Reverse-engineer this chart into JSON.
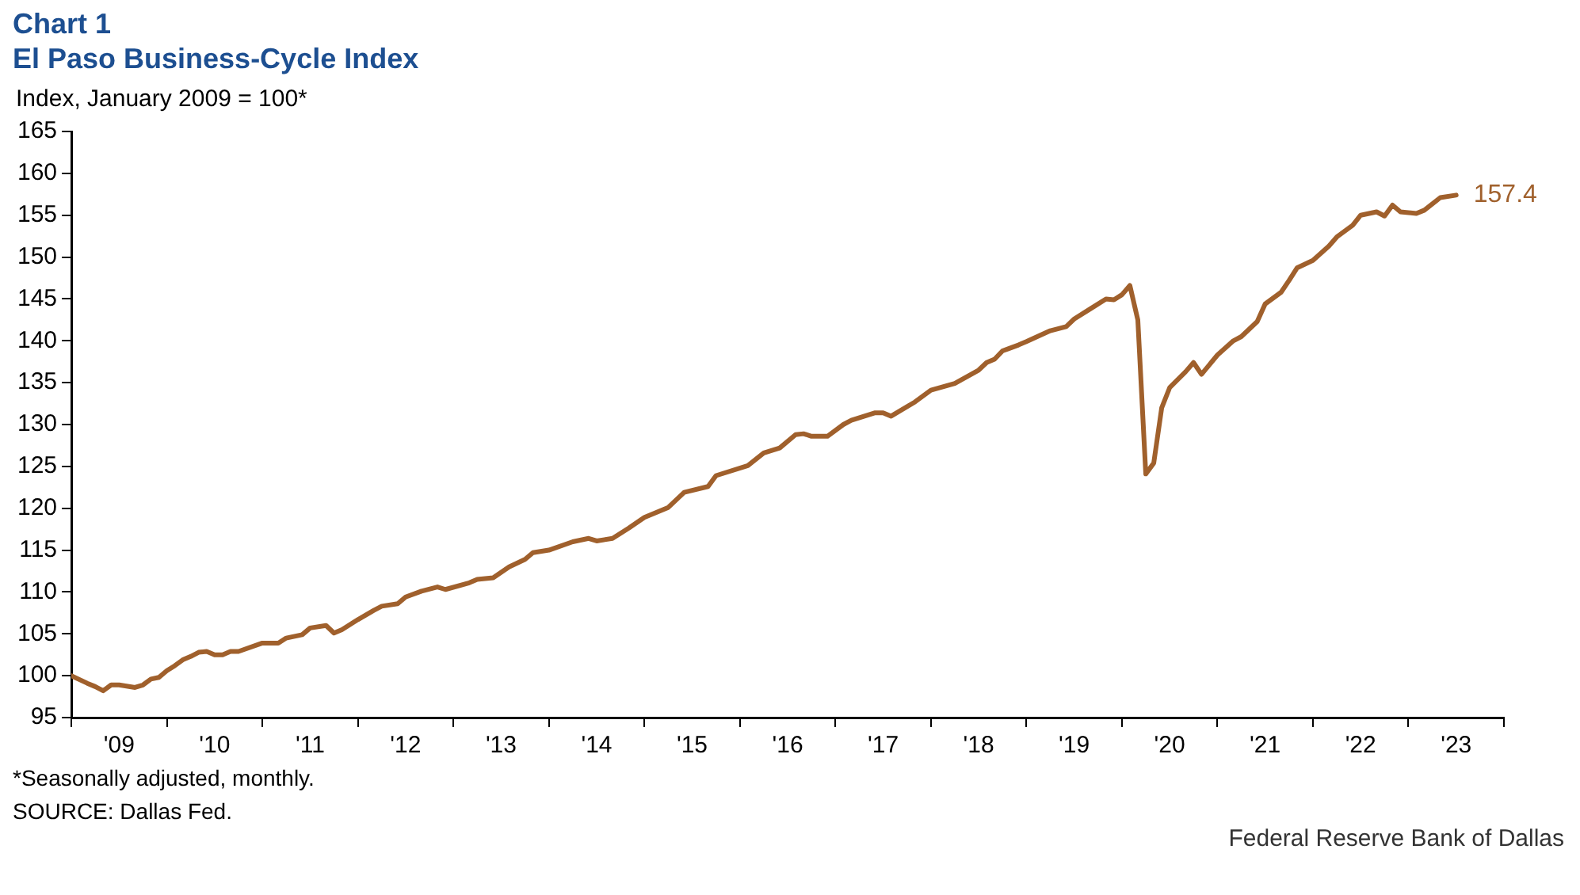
{
  "chart_data": {
    "type": "line",
    "title": "Chart 1",
    "subtitle": "El Paso Business-Cycle Index",
    "ylabel": "Index, January 2009 = 100*",
    "x": [
      "2009-01",
      "2009-03",
      "2009-04",
      "2009-05",
      "2009-06",
      "2009-07",
      "2009-09",
      "2009-10",
      "2009-11",
      "2009-12",
      "2010-01",
      "2010-02",
      "2010-03",
      "2010-04",
      "2010-05",
      "2010-06",
      "2010-07",
      "2010-08",
      "2010-09",
      "2010-10",
      "2011-01",
      "2011-03",
      "2011-04",
      "2011-06",
      "2011-07",
      "2011-09",
      "2011-10",
      "2011-11",
      "2012-01",
      "2012-03",
      "2012-04",
      "2012-06",
      "2012-07",
      "2012-09",
      "2012-11",
      "2012-12",
      "2013-03",
      "2013-04",
      "2013-06",
      "2013-08",
      "2013-10",
      "2013-11",
      "2014-01",
      "2014-04",
      "2014-06",
      "2014-07",
      "2014-09",
      "2014-11",
      "2015-01",
      "2015-04",
      "2015-06",
      "2015-09",
      "2015-10",
      "2016-02",
      "2016-04",
      "2016-06",
      "2016-08",
      "2016-09",
      "2016-10",
      "2016-12",
      "2017-02",
      "2017-03",
      "2017-06",
      "2017-07",
      "2017-08",
      "2017-11",
      "2018-01",
      "2018-04",
      "2018-07",
      "2018-08",
      "2018-09",
      "2018-10",
      "2018-12",
      "2019-01",
      "2019-04",
      "2019-06",
      "2019-07",
      "2019-09",
      "2019-11",
      "2019-12",
      "2020-01",
      "2020-02",
      "2020-03",
      "2020-04",
      "2020-05",
      "2020-06",
      "2020-07",
      "2020-09",
      "2020-10",
      "2020-11",
      "2021-01",
      "2021-03",
      "2021-04",
      "2021-06",
      "2021-07",
      "2021-09",
      "2021-10",
      "2021-11",
      "2022-01",
      "2022-03",
      "2022-04",
      "2022-06",
      "2022-07",
      "2022-09",
      "2022-10",
      "2022-11",
      "2022-12",
      "2023-02",
      "2023-03",
      "2023-05",
      "2023-07"
    ],
    "series": [
      {
        "color": "#a0602c",
        "values": [
          100,
          99.1,
          98.7,
          98.2,
          98.9,
          98.9,
          98.6,
          98.9,
          99.6,
          99.8,
          100.6,
          101.2,
          101.9,
          102.3,
          102.8,
          102.9,
          102.5,
          102.5,
          102.9,
          102.9,
          103.9,
          103.9,
          104.5,
          104.9,
          105.7,
          106.0,
          105.1,
          105.5,
          106.7,
          107.8,
          108.3,
          108.6,
          109.4,
          110.1,
          110.6,
          110.3,
          111.1,
          111.5,
          111.7,
          113.0,
          113.9,
          114.7,
          115.0,
          116.0,
          116.4,
          116.1,
          116.4,
          117.6,
          118.9,
          120.1,
          121.9,
          122.6,
          123.9,
          125.1,
          126.6,
          127.2,
          128.8,
          128.9,
          128.6,
          128.6,
          130.0,
          130.5,
          131.4,
          131.4,
          131.0,
          132.7,
          134.1,
          134.9,
          136.5,
          137.4,
          137.8,
          138.8,
          139.5,
          139.9,
          141.2,
          141.7,
          142.6,
          143.8,
          145.0,
          144.9,
          145.5,
          146.6,
          142.5,
          124.1,
          125.4,
          132.0,
          134.4,
          136.3,
          137.4,
          136.0,
          138.3,
          140.0,
          140.5,
          142.3,
          144.4,
          145.8,
          147.2,
          148.7,
          149.6,
          151.3,
          152.4,
          153.8,
          155.0,
          155.4,
          154.9,
          156.2,
          155.4,
          155.2,
          155.6,
          157.1,
          157.4
        ]
      }
    ],
    "xlim": [
      "2009-01",
      "2024-01"
    ],
    "xticks": [
      {
        "value": "2009-01",
        "label": null
      },
      {
        "value": "2009-07",
        "label": "'09"
      },
      {
        "value": "2010-01",
        "label": null
      },
      {
        "value": "2010-07",
        "label": "'10"
      },
      {
        "value": "2011-01",
        "label": null
      },
      {
        "value": "2011-07",
        "label": "'11"
      },
      {
        "value": "2012-01",
        "label": null
      },
      {
        "value": "2012-07",
        "label": "'12"
      },
      {
        "value": "2013-01",
        "label": null
      },
      {
        "value": "2013-07",
        "label": "'13"
      },
      {
        "value": "2014-01",
        "label": null
      },
      {
        "value": "2014-07",
        "label": "'14"
      },
      {
        "value": "2015-01",
        "label": null
      },
      {
        "value": "2015-07",
        "label": "'15"
      },
      {
        "value": "2016-01",
        "label": null
      },
      {
        "value": "2016-07",
        "label": "'16"
      },
      {
        "value": "2017-01",
        "label": null
      },
      {
        "value": "2017-07",
        "label": "'17"
      },
      {
        "value": "2018-01",
        "label": null
      },
      {
        "value": "2018-07",
        "label": "'18"
      },
      {
        "value": "2019-01",
        "label": null
      },
      {
        "value": "2019-07",
        "label": "'19"
      },
      {
        "value": "2020-01",
        "label": null
      },
      {
        "value": "2020-07",
        "label": "'20"
      },
      {
        "value": "2021-01",
        "label": null
      },
      {
        "value": "2021-07",
        "label": "'21"
      },
      {
        "value": "2022-01",
        "label": null
      },
      {
        "value": "2022-07",
        "label": "'22"
      },
      {
        "value": "2023-01",
        "label": null
      },
      {
        "value": "2023-07",
        "label": "'23"
      },
      {
        "value": "2024-01",
        "label": null
      }
    ],
    "ylim": [
      95,
      165
    ],
    "yticks": [
      95,
      100,
      105,
      110,
      115,
      120,
      125,
      130,
      135,
      140,
      145,
      150,
      155,
      160,
      165
    ],
    "grid": false,
    "legend": false,
    "marker": "none",
    "line_style": "solid",
    "annotations": [
      {
        "text": "157.4",
        "x": "2023-07",
        "y": 157.4
      },
      "*Seasonally adjusted, monthly.",
      "SOURCE: Dallas Fed.",
      "Federal Reserve Bank of Dallas"
    ]
  }
}
